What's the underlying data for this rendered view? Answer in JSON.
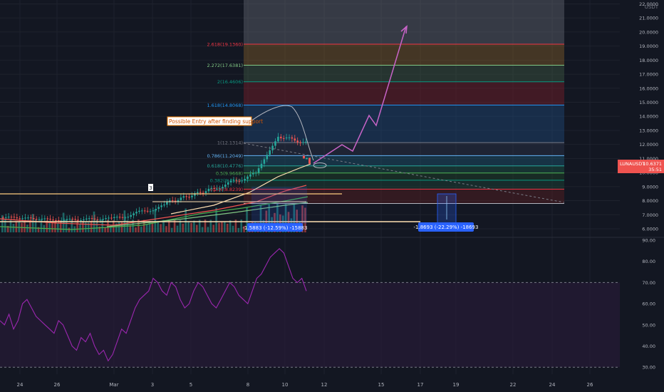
{
  "symbol": "LUNAUSDT",
  "quote_currency": "USDT",
  "current_price": "10.6371",
  "countdown": "35:51",
  "annotation": "Possible Entry after finding support",
  "range_label": "3",
  "measure_up": "-1.5883 (-12.59%) -15883",
  "measure_down": "-1.8693 (-22.29%) -18693",
  "price_axis": [
    "22.0000",
    "21.0000",
    "20.0000",
    "19.0000",
    "18.0000",
    "17.0000",
    "16.0000",
    "15.0000",
    "14.0000",
    "13.0000",
    "12.0000",
    "11.0000",
    "10.0000",
    "9.0000",
    "8.0000",
    "7.0000",
    "6.0000"
  ],
  "rsi_axis": [
    "90.00",
    "80.00",
    "70.00",
    "60.00",
    "50.00",
    "40.00",
    "30.00"
  ],
  "time_axis": [
    "24",
    "26",
    "Mar",
    "3",
    "5",
    "8",
    "10",
    "12",
    "15",
    "17",
    "19",
    "22",
    "24",
    "26"
  ],
  "fib_levels": [
    {
      "label": "2.618(19.1360)",
      "price": 19.136,
      "color": "#f23645"
    },
    {
      "label": "2.272(17.6381)",
      "price": 17.6381,
      "color": "#81c784"
    },
    {
      "label": "2(16.4606)",
      "price": 16.4606,
      "color": "#089981"
    },
    {
      "label": "1.618(14.8068)",
      "price": 14.8068,
      "color": "#2196f3"
    },
    {
      "label": "1(12.1314)",
      "price": 12.1314,
      "color": "#787b86"
    },
    {
      "label": "0.786(11.2049)",
      "price": 11.2049,
      "color": "#64b5f6"
    },
    {
      "label": "0.618(10.4776)",
      "price": 10.4776,
      "color": "#26a69a"
    },
    {
      "label": "0.5(9.9668)",
      "price": 9.9668,
      "color": "#4caf50"
    },
    {
      "label": "0.382(9.4559)",
      "price": 9.4559,
      "color": "#089981"
    },
    {
      "label": "0.236(8.8239)",
      "price": 8.8239,
      "color": "#f23645"
    }
  ],
  "colors": {
    "background": "#131722",
    "up": "#26a69a",
    "down": "#ef5350",
    "rsi": "#9c27b0",
    "rsi_band": "#2a1a3a",
    "projection": "#c864c8",
    "price_tag": "#ef5350",
    "measure": "#2962ff"
  }
}
